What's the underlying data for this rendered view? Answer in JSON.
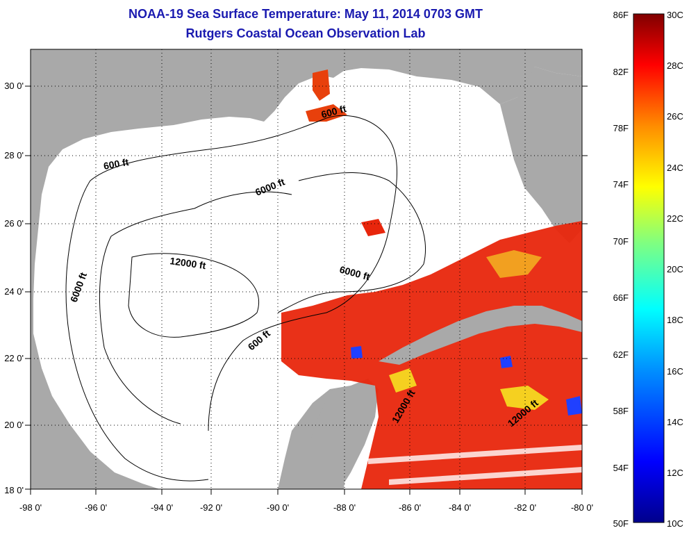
{
  "title_line1": "NOAA-19 Sea Surface Temperature:  May 11, 2014 0703 GMT",
  "title_line2": "Rutgers Coastal Ocean Observation Lab",
  "x_ticks": [
    "-98 0'",
    "-96 0'",
    "-94 0'",
    "-92 0'",
    "-90 0'",
    "-88 0'",
    "-86 0'",
    "-84 0'",
    "-82 0'",
    "-80 0'"
  ],
  "y_ticks": [
    "30 0'",
    "28 0'",
    "26 0'",
    "24 0'",
    "22 0'",
    "20 0'",
    "18 0'"
  ],
  "contour_labels": [
    "600 ft",
    "600 ft",
    "6000 ft",
    "6000 ft",
    "6000 ft",
    "12000 ft",
    "600 ft",
    "12000 ft",
    "12000 ft"
  ],
  "colorbar": {
    "fahrenheit": [
      "86F",
      "82F",
      "78F",
      "74F",
      "70F",
      "66F",
      "62F",
      "58F",
      "54F",
      "50F"
    ],
    "celsius": [
      "30C",
      "28C",
      "26C",
      "24C",
      "22C",
      "20C",
      "18C",
      "16C",
      "14C",
      "12C",
      "10C"
    ]
  },
  "colors": {
    "land": "#a9a9a9",
    "ocean_cloud": "#ffffff",
    "title": "#1a1ab0",
    "warm": "#e8260c"
  }
}
